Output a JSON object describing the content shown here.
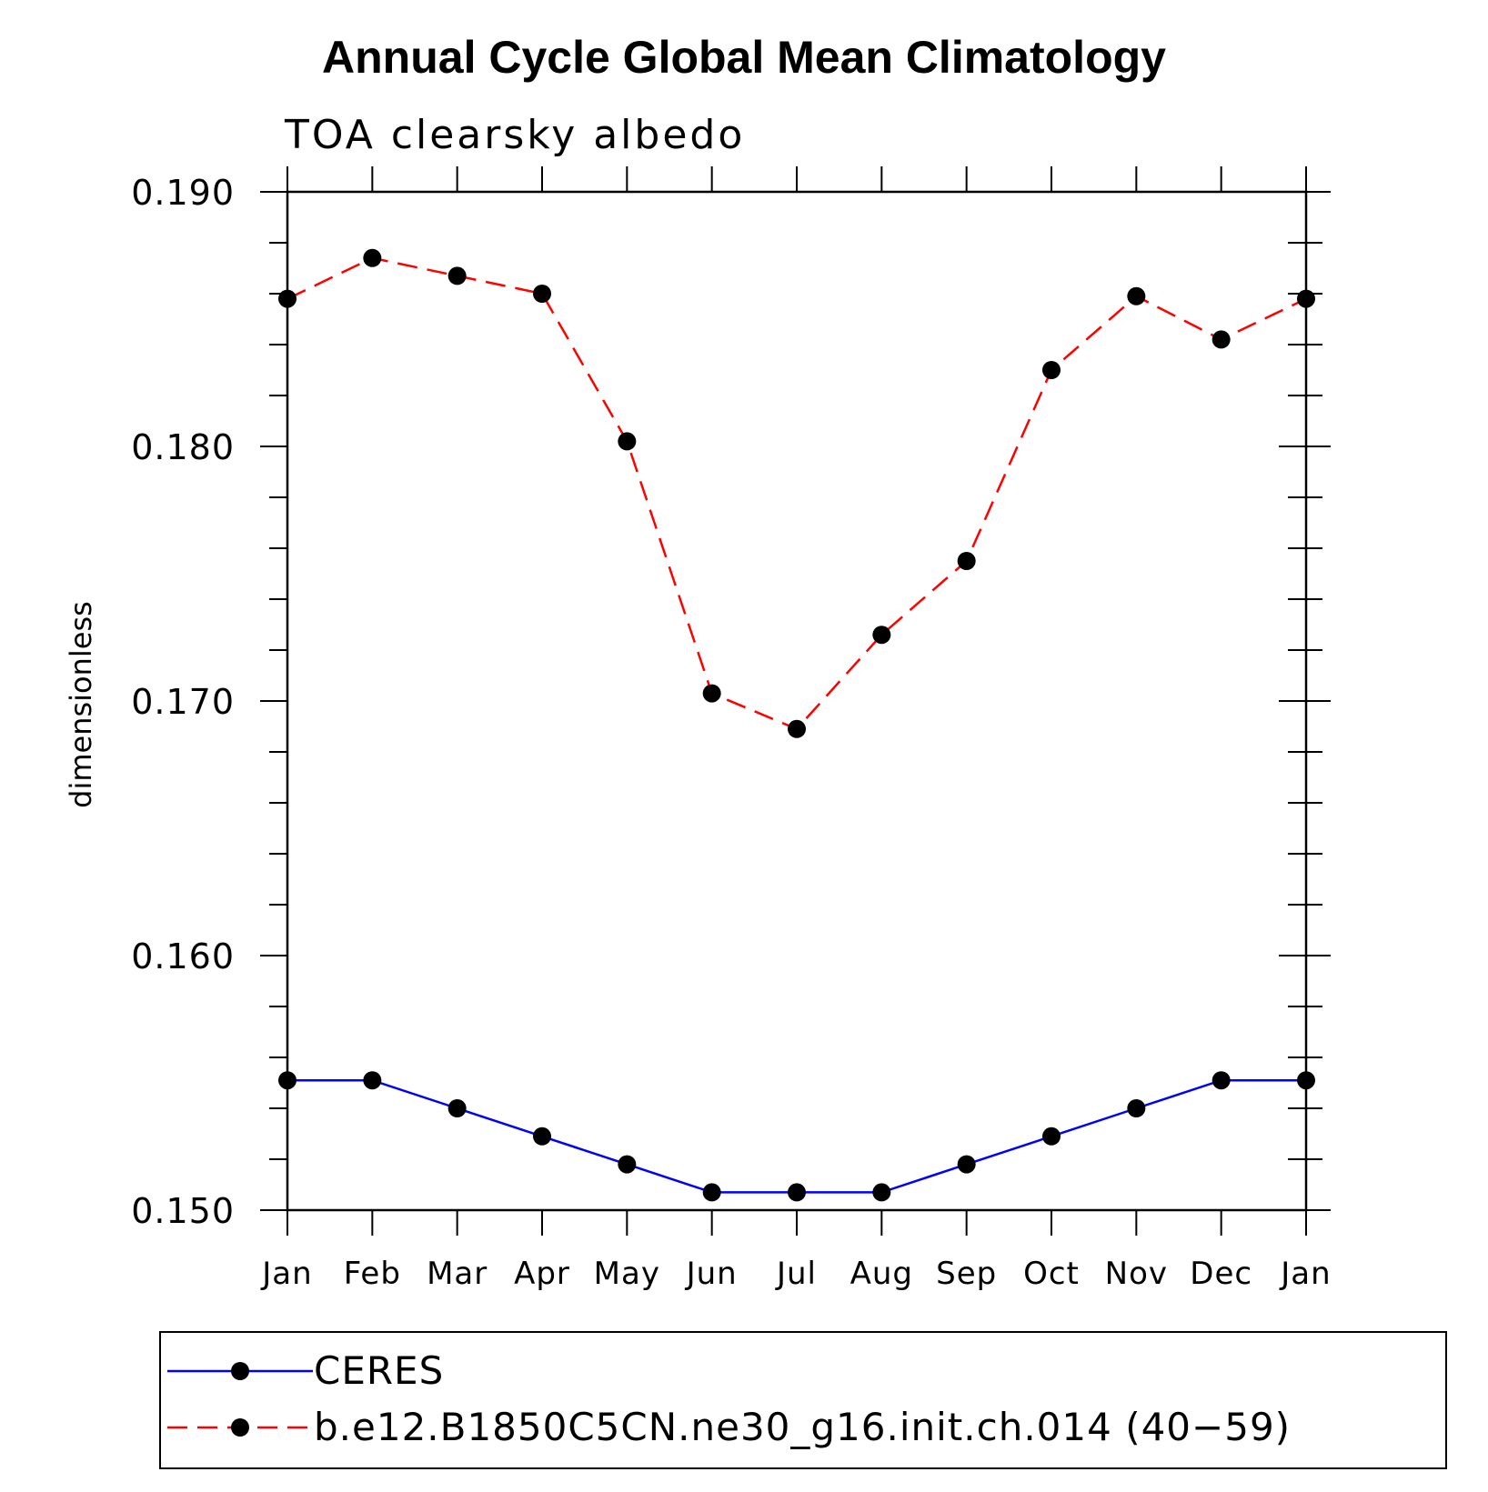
{
  "chart_data": {
    "type": "line",
    "title": "Annual Cycle Global Mean Climatology",
    "subtitle": "TOA clearsky albedo",
    "xlabel": "",
    "ylabel": "dimensionless",
    "categories": [
      "Jan",
      "Feb",
      "Mar",
      "Apr",
      "May",
      "Jun",
      "Jul",
      "Aug",
      "Sep",
      "Oct",
      "Nov",
      "Dec",
      "Jan"
    ],
    "ylim": [
      0.15,
      0.19
    ],
    "yticks": [
      0.15,
      0.16,
      0.17,
      0.18,
      0.19
    ],
    "ytick_labels": [
      "0.150",
      "0.160",
      "0.170",
      "0.180",
      "0.190"
    ],
    "series": [
      {
        "name": "CERES",
        "color": "#0000ff",
        "dash": "solid",
        "marker": "circle",
        "values": [
          0.1551,
          0.1551,
          0.154,
          0.1529,
          0.1518,
          0.1507,
          0.1507,
          0.1507,
          0.1518,
          0.1529,
          0.154,
          0.1551,
          0.1551
        ]
      },
      {
        "name": "b.e12.B1850C5CN.ne30_g16.init.ch.014 (40−59)",
        "color": "#ff0000",
        "dash": "dashed",
        "marker": "circle",
        "values": [
          0.1858,
          0.1874,
          0.1867,
          0.186,
          0.1802,
          0.1703,
          0.1689,
          0.1726,
          0.1755,
          0.183,
          0.1859,
          0.1842,
          0.1858
        ]
      }
    ],
    "legend": {
      "placement": "bottom"
    }
  }
}
